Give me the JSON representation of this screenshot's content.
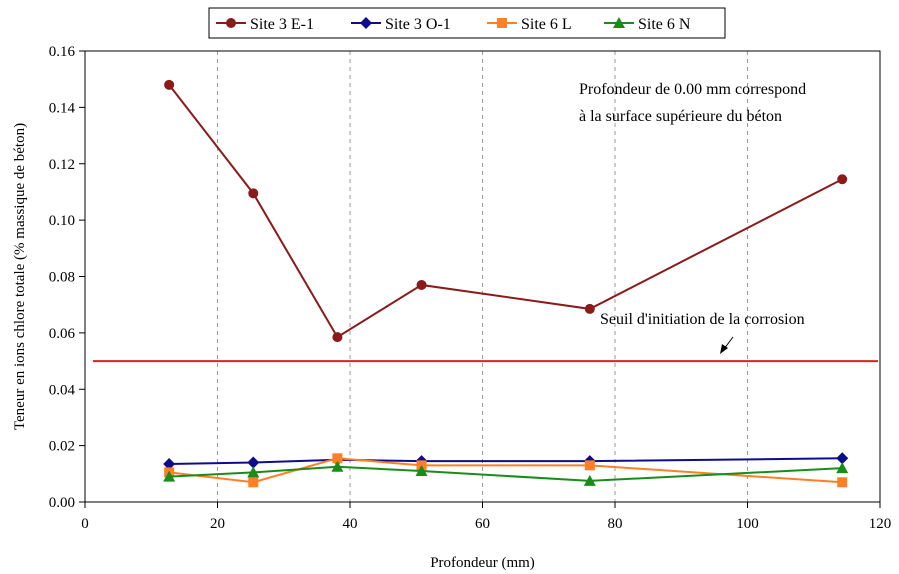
{
  "chart_data": {
    "type": "line",
    "xlabel": "Profondeur (mm)",
    "ylabel": "Teneur en ions chlore totale (% massique de béton)",
    "xlim": [
      0,
      120
    ],
    "ylim": [
      0,
      0.16
    ],
    "x_ticks": [
      0,
      20,
      40,
      60,
      80,
      100,
      120
    ],
    "y_ticks": [
      0.0,
      0.02,
      0.04,
      0.06,
      0.08,
      0.1,
      0.12,
      0.14,
      0.16
    ],
    "x_tick_labels": [
      "0",
      "20",
      "40",
      "60",
      "80",
      "100",
      "120"
    ],
    "y_tick_labels": [
      "0.00",
      "0.02",
      "0.04",
      "0.06",
      "0.08",
      "0.10",
      "0.12",
      "0.14",
      "0.16"
    ],
    "grid": "vertical dashed",
    "legend_position": "top",
    "series": [
      {
        "name": "Site 3 E-1",
        "color": "#8B1A1A",
        "marker": "circle",
        "x": [
          12.7,
          25.4,
          38.1,
          50.8,
          76.2,
          114.3
        ],
        "y": [
          0.148,
          0.1095,
          0.0585,
          0.077,
          0.0685,
          0.1145
        ]
      },
      {
        "name": "Site 3 O-1",
        "color": "#0D0D8C",
        "marker": "diamond",
        "x": [
          12.7,
          25.4,
          38.1,
          50.8,
          76.2,
          114.3
        ],
        "y": [
          0.0135,
          0.014,
          0.015,
          0.0145,
          0.0145,
          0.0155
        ]
      },
      {
        "name": "Site 6 L",
        "color": "#FF7F27",
        "marker": "square",
        "x": [
          12.7,
          25.4,
          38.1,
          50.8,
          76.2,
          114.3
        ],
        "y": [
          0.0105,
          0.007,
          0.0155,
          0.013,
          0.013,
          0.007
        ]
      },
      {
        "name": "Site 6 N",
        "color": "#1A8C1A",
        "marker": "triangle",
        "x": [
          12.7,
          25.4,
          38.1,
          50.8,
          76.2,
          114.3
        ],
        "y": [
          0.009,
          0.0105,
          0.0125,
          0.011,
          0.0075,
          0.012
        ]
      }
    ],
    "threshold": {
      "y": 0.05,
      "color": "#E02020",
      "label": "Seuil d'initiation de la corrosion"
    },
    "annotation": {
      "line1": "Profondeur de 0.00 mm correspond",
      "line2": "à la surface supérieure du béton"
    }
  }
}
